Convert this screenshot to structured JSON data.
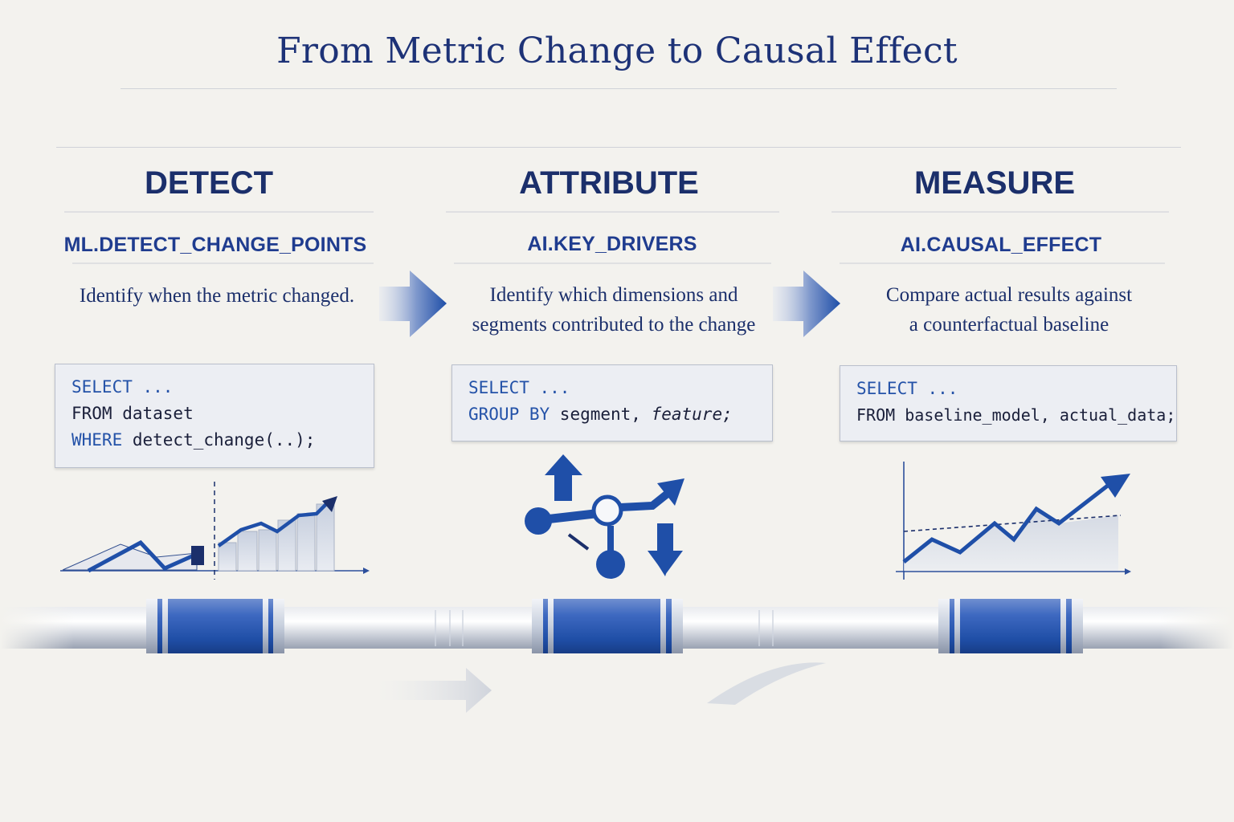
{
  "title": "From Metric Change to Causal Effect",
  "stages": [
    {
      "heading": "DETECT",
      "function": "ML.DETECT_CHANGE_POINTS",
      "description": [
        "Identify when the metric changed."
      ],
      "code": {
        "line1_kw": "SELECT ...",
        "line2_kw": "FROM",
        "line2_rest": " dataset",
        "line3_kw": "WHERE",
        "line3_rest": " detect_change(..);"
      },
      "icon": "change-point-chart-icon"
    },
    {
      "heading": "ATTRIBUTE",
      "function": "AI.KEY_DRIVERS",
      "description": [
        "Identify which dimensions and",
        "segments contributed to the change"
      ],
      "code": {
        "line1_kw": "SELECT ...",
        "line2_kw": "GROUP BY",
        "line2_rest": " segment, ",
        "line2_em": "feature;"
      },
      "icon": "key-drivers-network-icon"
    },
    {
      "heading": "MEASURE",
      "function": "AI.CAUSAL_EFFECT",
      "description": [
        "Compare actual results against",
        "a counterfactual baseline"
      ],
      "code": {
        "line1_kw": "SELECT ...",
        "line2_kw": "FROM",
        "line2_rest": " baseline_model, actual_data;"
      },
      "icon": "counterfactual-chart-icon"
    }
  ],
  "colors": {
    "background": "#f3f2ee",
    "primary": "#1f4fa8",
    "dark_navy": "#1b2f6b",
    "code_keyword": "#2452a8"
  }
}
